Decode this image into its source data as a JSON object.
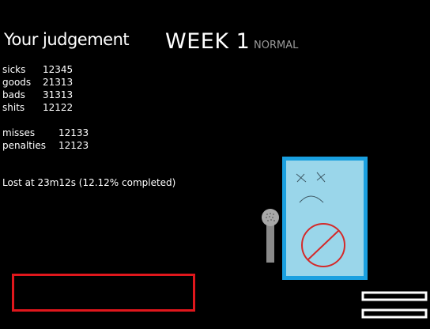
{
  "header": {
    "title": "Your judgement",
    "week": "WEEK 1",
    "difficulty": "NORMAL"
  },
  "judgements": [
    {
      "label": "sicks",
      "value": "12345"
    },
    {
      "label": "goods",
      "value": "21313"
    },
    {
      "label": "bads",
      "value": "31313"
    },
    {
      "label": "shits",
      "value": "12122"
    }
  ],
  "extra_stats": [
    {
      "label": "misses",
      "value": "12133"
    },
    {
      "label": "penalties",
      "value": "12123"
    }
  ],
  "status_text": "Lost at 23m12s (12.12% completed)",
  "colors": {
    "background": "#000000",
    "text": "#ffffff",
    "difficulty": "#9a9a9a",
    "retry_border": "#e0171c",
    "card_border": "#1aa0e0",
    "card_fill": "#9ad6ea",
    "no_sign": "#d42a2a"
  },
  "icons": {
    "menu": "menu-icon",
    "microphone": "microphone-icon",
    "sad_face": "sad-face-icon",
    "no_sign": "prohibited-icon"
  }
}
